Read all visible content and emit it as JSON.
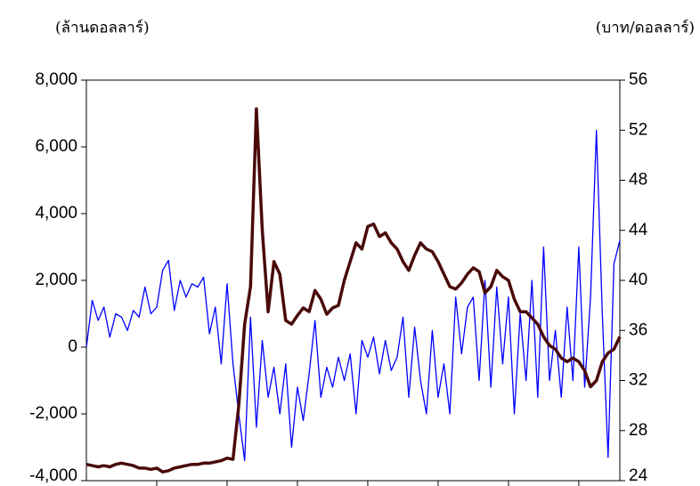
{
  "chart_data": {
    "type": "line",
    "y_label": "(ล้านดอลลาร์)",
    "y2_label": "(บาท/ดอลลาร์)",
    "categories": [
      null,
      null,
      null,
      null,
      null,
      null,
      null,
      null,
      null,
      null,
      null,
      null,
      null,
      null,
      null,
      null,
      null,
      null,
      null,
      null,
      null,
      null,
      null,
      null,
      null,
      null,
      null,
      null,
      null,
      null,
      null,
      null,
      null,
      null,
      null,
      null,
      null,
      null,
      null,
      null,
      null,
      null,
      null,
      null,
      null,
      null,
      null,
      null,
      null,
      null,
      null,
      null,
      null,
      null,
      null,
      null,
      null,
      null,
      null,
      null,
      null,
      null,
      null,
      null,
      null,
      null,
      null,
      null,
      null,
      null,
      null,
      null,
      null,
      null,
      null,
      null,
      null,
      null,
      null,
      null,
      null,
      null,
      null,
      null,
      null,
      null,
      null,
      null,
      null,
      null,
      null,
      null
    ],
    "series": [
      {
        "color": "#0000ff",
        "values": [
          0,
          1400,
          800,
          1200,
          300,
          1000,
          900,
          500,
          1100,
          900,
          1800,
          1000,
          1200,
          2300,
          2600,
          1100,
          2000,
          1500,
          1900,
          1800,
          2100,
          400,
          1200,
          -500,
          1900,
          -500,
          -2000,
          -3400,
          900,
          -2400,
          200,
          -1500,
          -600,
          -2000,
          -500,
          -3000,
          -1200,
          -2200,
          -800,
          800,
          -1500,
          -600,
          -1200,
          -300,
          -1000,
          -200,
          -2000,
          200,
          -300,
          300,
          -800,
          200,
          -700,
          -300,
          900,
          -1500,
          600,
          -1000,
          -2000,
          500,
          -1500,
          -500,
          -2000,
          1500,
          -200,
          1200,
          1500,
          -1000,
          2000,
          -1200,
          1800,
          -500,
          1500,
          -2000,
          1000,
          -1000,
          2000,
          -1500,
          3000,
          -1000,
          500,
          -1500,
          1200,
          -1000,
          3000,
          -1200,
          1500,
          6500,
          1000,
          -3300,
          2500,
          3200
        ]
      },
      {
        "color": "#4a0a0a",
        "axis": "y2",
        "values": [
          25.3,
          25.2,
          25.1,
          25.2,
          25.1,
          25.3,
          25.4,
          25.3,
          25.2,
          25.0,
          25.0,
          24.9,
          25.0,
          24.7,
          24.8,
          25.0,
          25.1,
          25.2,
          25.3,
          25.3,
          25.4,
          25.4,
          25.5,
          25.6,
          25.8,
          25.7,
          30.0,
          36.5,
          39.5,
          53.7,
          44.0,
          37.5,
          41.5,
          40.5,
          36.8,
          36.5,
          37.2,
          37.8,
          37.5,
          39.2,
          38.5,
          37.3,
          37.8,
          38.0,
          40.0,
          41.5,
          43.0,
          42.5,
          44.3,
          44.5,
          43.5,
          43.8,
          43.0,
          42.5,
          41.5,
          40.8,
          42.0,
          43.0,
          42.5,
          42.3,
          41.5,
          40.5,
          39.5,
          39.3,
          39.8,
          40.5,
          41.0,
          40.7,
          39.0,
          39.5,
          40.8,
          40.3,
          40.0,
          38.5,
          37.5,
          37.5,
          37.0,
          36.5,
          35.5,
          34.8,
          34.5,
          33.8,
          33.5,
          33.8,
          33.5,
          32.8,
          31.5,
          32.0,
          33.5,
          34.2,
          34.5,
          35.5
        ]
      }
    ],
    "ylim": [
      -4000,
      8000
    ],
    "yticks": [
      {
        "value": -4000,
        "label": "-4,000"
      },
      {
        "value": -2000,
        "label": "-2,000"
      },
      0,
      {
        "value": 2000,
        "label": "2,000"
      },
      {
        "value": 4000,
        "label": "4,000"
      },
      {
        "value": 6000,
        "label": "6,000"
      },
      {
        "value": 8000,
        "label": "8,000"
      }
    ],
    "y2lim": [
      24,
      56
    ],
    "y2ticks": [
      24,
      28,
      32,
      36,
      40,
      44,
      48,
      52,
      56
    ]
  }
}
